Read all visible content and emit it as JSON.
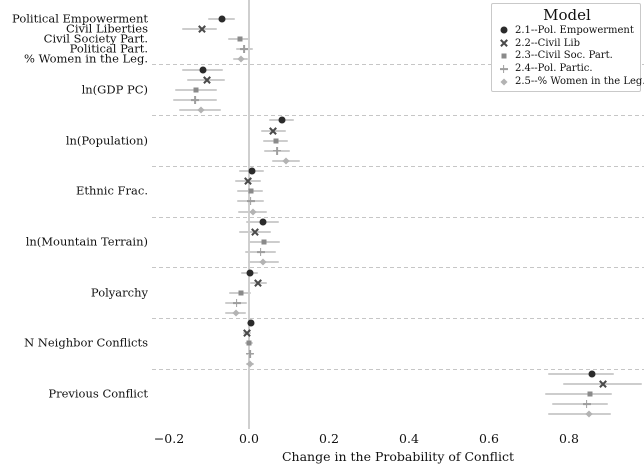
{
  "chart_data": {
    "type": "dot-whisker",
    "xlabel": "Change in the Probability of Conflict",
    "x_axis": {
      "range": [
        -0.2425,
        0.9875
      ],
      "ticks": [
        {
          "label": "−0.2",
          "value": -0.2
        },
        {
          "label": "0.0",
          "value": 0.0
        },
        {
          "label": "0.2",
          "value": 0.2
        },
        {
          "label": "0.4",
          "value": 0.4
        },
        {
          "label": "0.6",
          "value": 0.6
        },
        {
          "label": "0.8",
          "value": 0.8
        }
      ]
    },
    "legend": {
      "title": "Model",
      "position": "top-right",
      "entries": [
        {
          "marker": "circle",
          "label": "2.1--Pol. Empowerment"
        },
        {
          "marker": "x",
          "label": "2.2--Civil Lib"
        },
        {
          "marker": "square",
          "label": "2.3--Civil Soc. Part."
        },
        {
          "marker": "plus",
          "label": "2.4--Pol. Partic."
        },
        {
          "marker": "diamond",
          "label": "2.5--% Women in the Leg."
        }
      ]
    },
    "models": [
      {
        "id": "2.1",
        "name": "Pol. Empowerment",
        "marker": "circle",
        "color": "#2b2b2b"
      },
      {
        "id": "2.2",
        "name": "Civil Lib",
        "marker": "x",
        "color": "#4a4a4a"
      },
      {
        "id": "2.3",
        "name": "Civil Soc. Part.",
        "marker": "square",
        "color": "#8a8a8a"
      },
      {
        "id": "2.4",
        "name": "Pol. Partic.",
        "marker": "plus",
        "color": "#9e9e9e"
      },
      {
        "id": "2.5",
        "name": "% Women in the Leg.",
        "marker": "diamond",
        "color": "#b3b3b3"
      }
    ],
    "ci_color": "#cdcdcd",
    "zero_line_color": "#cfcfcf",
    "separator_color": "#c6c6c6",
    "groups": [
      {
        "row_labels": [
          "Political Empowerment",
          "Civil Liberties",
          "Civil Society Part.",
          "Political Part.",
          "% Women in the Leg."
        ],
        "points": [
          {
            "est": -0.067,
            "lo": -0.103,
            "hi": -0.036
          },
          {
            "est": -0.118,
            "lo": -0.167,
            "hi": -0.079
          },
          {
            "est": -0.022,
            "lo": -0.053,
            "hi": 0.003
          },
          {
            "est": -0.012,
            "lo": -0.033,
            "hi": 0.009
          },
          {
            "est": -0.021,
            "lo": -0.039,
            "hi": -0.002
          }
        ]
      },
      {
        "label": "ln(GDP PC)",
        "points": [
          {
            "est": -0.116,
            "lo": -0.168,
            "hi": -0.066
          },
          {
            "est": -0.106,
            "lo": -0.154,
            "hi": -0.06
          },
          {
            "est": -0.132,
            "lo": -0.185,
            "hi": -0.081
          },
          {
            "est": -0.135,
            "lo": -0.19,
            "hi": -0.08
          },
          {
            "est": -0.121,
            "lo": -0.174,
            "hi": -0.07
          }
        ]
      },
      {
        "label": "ln(Population)",
        "points": [
          {
            "est": 0.082,
            "lo": 0.051,
            "hi": 0.113
          },
          {
            "est": 0.061,
            "lo": 0.029,
            "hi": 0.092
          },
          {
            "est": 0.068,
            "lo": 0.036,
            "hi": 0.098
          },
          {
            "est": 0.071,
            "lo": 0.038,
            "hi": 0.103
          },
          {
            "est": 0.093,
            "lo": 0.058,
            "hi": 0.128
          }
        ]
      },
      {
        "label": "Ethnic Frac.",
        "points": [
          {
            "est": 0.007,
            "lo": -0.024,
            "hi": 0.038
          },
          {
            "est": -0.003,
            "lo": -0.035,
            "hi": 0.029
          },
          {
            "est": 0.004,
            "lo": -0.029,
            "hi": 0.036
          },
          {
            "est": 0.004,
            "lo": -0.031,
            "hi": 0.038
          },
          {
            "est": 0.009,
            "lo": -0.027,
            "hi": 0.044
          }
        ]
      },
      {
        "label": "ln(Mountain Terrain)",
        "points": [
          {
            "est": 0.034,
            "lo": -0.008,
            "hi": 0.075
          },
          {
            "est": 0.015,
            "lo": -0.024,
            "hi": 0.054
          },
          {
            "est": 0.038,
            "lo": 0.0,
            "hi": 0.078
          },
          {
            "est": 0.029,
            "lo": -0.01,
            "hi": 0.068
          },
          {
            "est": 0.036,
            "lo": -0.003,
            "hi": 0.075
          }
        ]
      },
      {
        "label": "Polyarchy",
        "points": [
          {
            "est": 0.003,
            "lo": -0.021,
            "hi": 0.023
          },
          {
            "est": 0.023,
            "lo": 0.003,
            "hi": 0.046
          },
          {
            "est": -0.021,
            "lo": -0.049,
            "hi": 0.005
          },
          {
            "est": -0.031,
            "lo": -0.06,
            "hi": -0.004
          },
          {
            "est": -0.033,
            "lo": -0.06,
            "hi": -0.008
          }
        ]
      },
      {
        "label": "N Neighbor Conflicts",
        "points": [
          {
            "est": 0.004,
            "lo": -0.004,
            "hi": 0.013
          },
          {
            "est": -0.006,
            "lo": -0.016,
            "hi": 0.005
          },
          {
            "est": 0.0,
            "lo": -0.009,
            "hi": 0.009
          },
          {
            "est": 0.003,
            "lo": -0.008,
            "hi": 0.013
          },
          {
            "est": 0.003,
            "lo": -0.007,
            "hi": 0.012
          }
        ]
      },
      {
        "label": "Previous Conflict",
        "points": [
          {
            "est": 0.858,
            "lo": 0.748,
            "hi": 0.913
          },
          {
            "est": 0.886,
            "lo": 0.784,
            "hi": 0.982
          },
          {
            "est": 0.853,
            "lo": 0.74,
            "hi": 0.908
          },
          {
            "est": 0.844,
            "lo": 0.758,
            "hi": 0.897
          },
          {
            "est": 0.85,
            "lo": 0.748,
            "hi": 0.904
          }
        ]
      }
    ]
  }
}
